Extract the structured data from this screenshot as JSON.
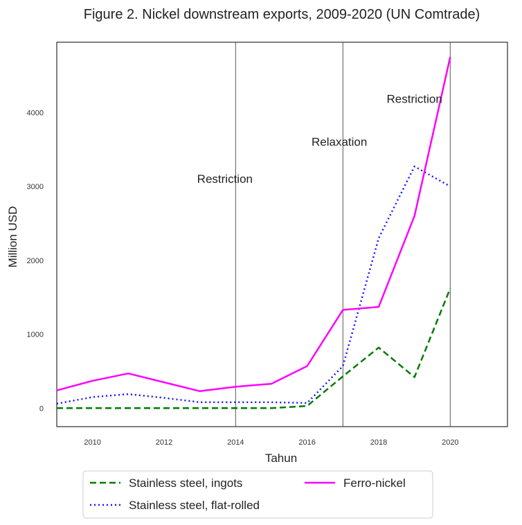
{
  "chart_data": {
    "type": "line",
    "title": "Figure 2. Nickel downstream exports, 2009-2020 (UN Comtrade)",
    "xlabel": "Tahun",
    "ylabel": "Million USD",
    "xlim": [
      2009,
      2021.6
    ],
    "ylim": [
      -250,
      4950
    ],
    "xticks": [
      2010,
      2012,
      2014,
      2016,
      2018,
      2020
    ],
    "yticks": [
      0,
      1000,
      2000,
      3000,
      4000
    ],
    "grid": false,
    "x": [
      2009,
      2010,
      2011,
      2012,
      2013,
      2014,
      2015,
      2016,
      2017,
      2018,
      2019,
      2020
    ],
    "series": [
      {
        "name": "Stainless steel, ingots",
        "color": "#007a00",
        "style": "dashed",
        "values": [
          0,
          0,
          0,
          0,
          0,
          0,
          0,
          30,
          430,
          820,
          420,
          1620
        ]
      },
      {
        "name": "Stainless steel, flat-rolled",
        "color": "#1414ff",
        "style": "dotted",
        "values": [
          60,
          150,
          190,
          140,
          80,
          80,
          80,
          70,
          570,
          2300,
          3270,
          3000
        ]
      },
      {
        "name": "Ferro-nickel",
        "color": "#ff00ff",
        "style": "solid",
        "values": [
          240,
          370,
          470,
          350,
          230,
          290,
          330,
          570,
          1330,
          1370,
          2600,
          4750
        ]
      }
    ],
    "vlines": [
      2014,
      2017,
      2020
    ],
    "annotations": [
      {
        "text": "Restriction",
        "x": 2013.7,
        "y": 3050
      },
      {
        "text": "Relaxation",
        "x": 2016.9,
        "y": 3550
      },
      {
        "text": "Restriction",
        "x": 2019.0,
        "y": 4130
      }
    ],
    "legend": {
      "placement": "bottom-center",
      "columns": 2,
      "order": [
        "Stainless steel, ingots",
        "Stainless steel, flat-rolled",
        "Ferro-nickel"
      ]
    }
  }
}
